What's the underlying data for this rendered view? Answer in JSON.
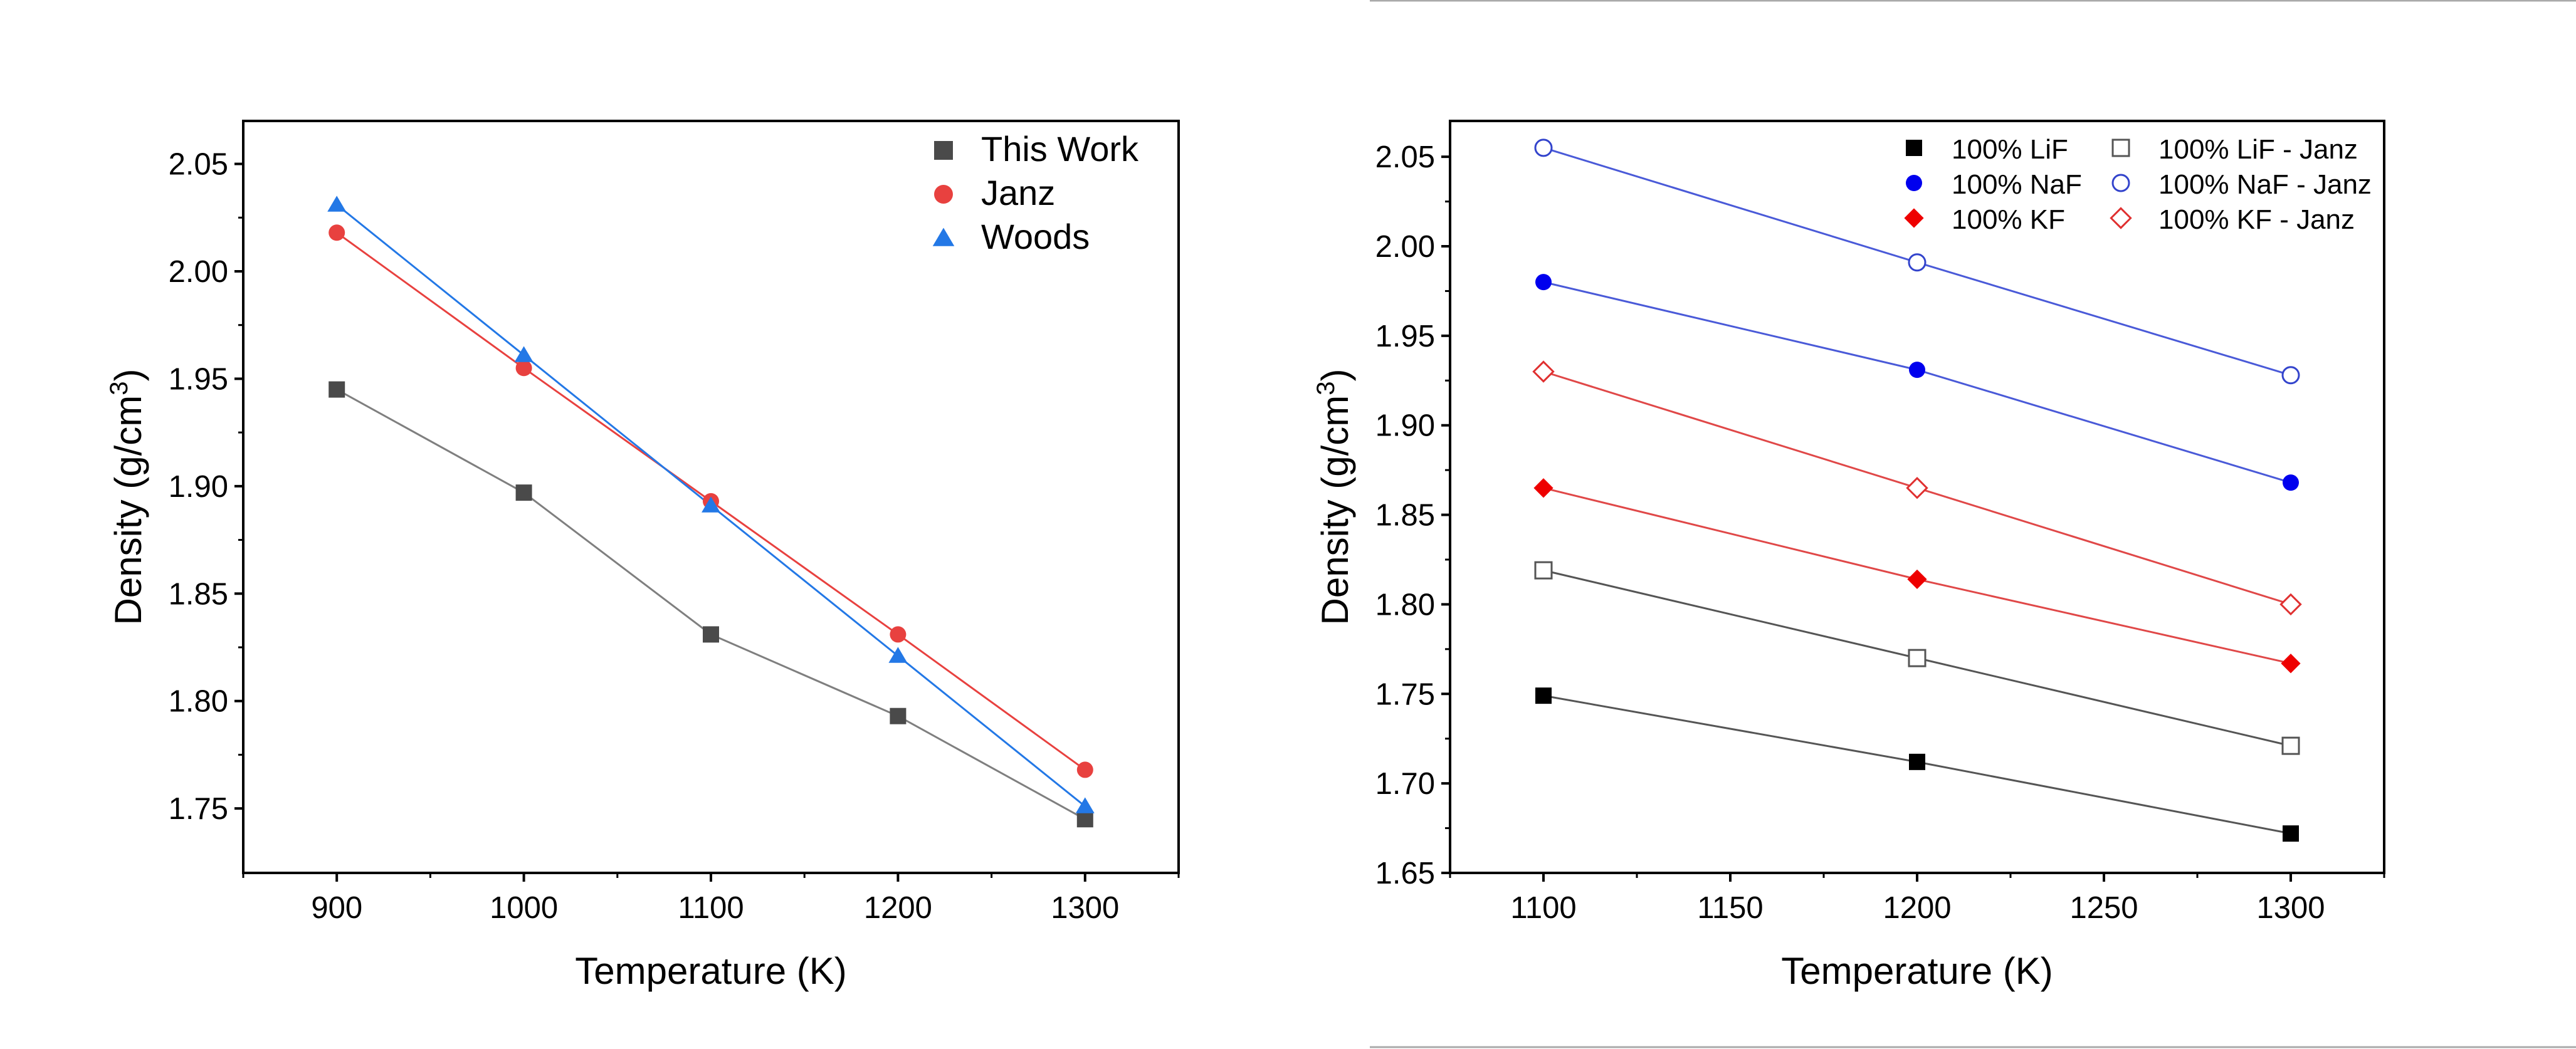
{
  "chart_data": [
    {
      "type": "scatter",
      "title": "",
      "xlabel": "Temperature (K)",
      "ylabel": "Density (g/cm3)",
      "ylabel_main": "Density (g/cm",
      "ylabel_sup": "3",
      "ylabel_end": ")",
      "xlim": [
        850,
        1350
      ],
      "ylim": [
        1.72,
        2.07
      ],
      "xticks": [
        "900",
        "1000",
        "1100",
        "1200",
        "1300"
      ],
      "yticks": [
        "1.75",
        "1.80",
        "1.85",
        "1.90",
        "1.95",
        "2.00",
        "2.05"
      ],
      "grid": false,
      "legend_position": "top-right",
      "series": [
        {
          "name": "This Work",
          "color": "#4a4a4a",
          "line_color": "#7f7f7f",
          "marker": "square-filled",
          "x": [
            900,
            1000,
            1100,
            1200,
            1300
          ],
          "y": [
            1.945,
            1.897,
            1.831,
            1.793,
            1.745
          ]
        },
        {
          "name": "Janz",
          "color": "#e8413f",
          "line_color": "#e8413f",
          "marker": "circle-filled",
          "x": [
            900,
            1000,
            1100,
            1200,
            1300
          ],
          "y": [
            2.018,
            1.955,
            1.893,
            1.831,
            1.768
          ]
        },
        {
          "name": "Woods",
          "color": "#2378e6",
          "line_color": "#2378e6",
          "marker": "triangle-filled",
          "x": [
            900,
            1000,
            1100,
            1200,
            1300
          ],
          "y": [
            2.031,
            1.961,
            1.891,
            1.821,
            1.751
          ]
        }
      ]
    },
    {
      "type": "scatter",
      "title": "",
      "xlabel": "Temperature (K)",
      "ylabel": "Density (g/cm3)",
      "ylabel_main": "Density (g/cm",
      "ylabel_sup": "3",
      "ylabel_end": ")",
      "xlim": [
        1075,
        1325
      ],
      "ylim": [
        1.65,
        2.07
      ],
      "xticks": [
        "1100",
        "1150",
        "1200",
        "1250",
        "1300"
      ],
      "yticks": [
        "1.65",
        "1.70",
        "1.75",
        "1.80",
        "1.85",
        "1.90",
        "1.95",
        "2.00",
        "2.05"
      ],
      "grid": false,
      "legend_position": "top-right",
      "series": [
        {
          "name": "100% LiF",
          "color": "#000000",
          "line_color": "#555555",
          "marker": "square-filled",
          "x": [
            1100,
            1200,
            1300
          ],
          "y": [
            1.749,
            1.712,
            1.672
          ]
        },
        {
          "name": "100% LiF - Janz",
          "color": "#555555",
          "line_color": "#555555",
          "marker": "square-open",
          "x": [
            1100,
            1200,
            1300
          ],
          "y": [
            1.819,
            1.77,
            1.721
          ]
        },
        {
          "name": "100% NaF",
          "color": "#0000ee",
          "line_color": "#4a5ad8",
          "marker": "circle-filled",
          "x": [
            1100,
            1200,
            1300
          ],
          "y": [
            1.98,
            1.931,
            1.868
          ]
        },
        {
          "name": "100% NaF - Janz",
          "color": "#3344cc",
          "line_color": "#4a5ad8",
          "marker": "circle-open",
          "x": [
            1100,
            1200,
            1300
          ],
          "y": [
            2.055,
            1.991,
            1.928
          ]
        },
        {
          "name": "100% KF",
          "color": "#ee0000",
          "line_color": "#e04848",
          "marker": "diamond-filled",
          "x": [
            1100,
            1200,
            1300
          ],
          "y": [
            1.865,
            1.814,
            1.767
          ]
        },
        {
          "name": "100% KF - Janz",
          "color": "#e03030",
          "line_color": "#e04848",
          "marker": "diamond-open",
          "x": [
            1100,
            1200,
            1300
          ],
          "y": [
            1.93,
            1.865,
            1.8
          ]
        }
      ]
    }
  ]
}
